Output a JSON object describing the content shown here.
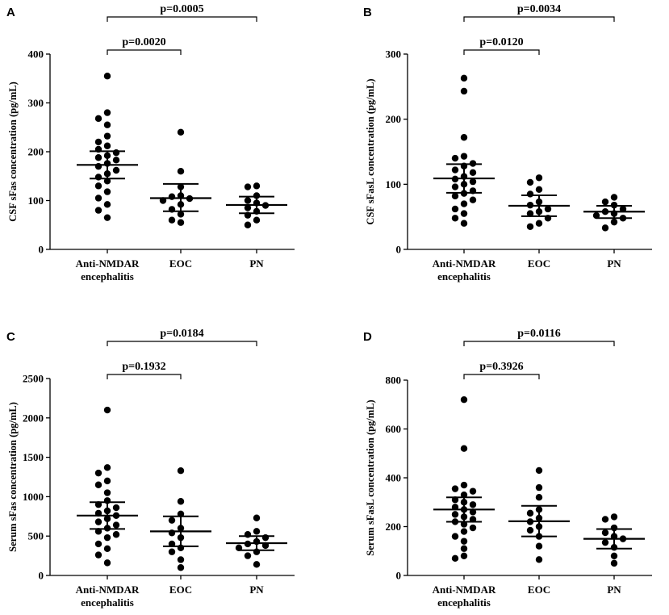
{
  "chart_data": [
    {
      "type": "scatter",
      "panel_label": "A",
      "ylabel": "CSF sFas concentration (pg/mL)",
      "categories": [
        "Anti-NMDAR encephalitis",
        "EOC",
        "PN"
      ],
      "category_lines": [
        [
          "Anti-NMDAR",
          "encephalitis"
        ],
        [
          "EOC"
        ],
        [
          "PN"
        ]
      ],
      "ylim": [
        0,
        400
      ],
      "yticks": [
        "0",
        "100",
        "200",
        "300",
        "400"
      ],
      "yticks_values": [
        0,
        100,
        200,
        300,
        400
      ],
      "brackets": [
        {
          "from": 0,
          "to": 2,
          "label": "p=0.0005"
        },
        {
          "from": 0,
          "to": 1,
          "label": "p=0.0020"
        }
      ],
      "groups": [
        {
          "name": "Anti-NMDAR encephalitis",
          "mean": 173,
          "ci_low": 145,
          "ci_high": 201,
          "values": [
            355,
            280,
            268,
            255,
            232,
            220,
            212,
            205,
            198,
            192,
            188,
            183,
            176,
            170,
            162,
            155,
            148,
            140,
            130,
            118,
            105,
            92,
            80,
            65
          ]
        },
        {
          "name": "EOC",
          "mean": 105,
          "ci_low": 78,
          "ci_high": 134,
          "values": [
            240,
            160,
            128,
            110,
            108,
            104,
            100,
            92,
            82,
            72,
            60,
            55
          ]
        },
        {
          "name": "PN",
          "mean": 91,
          "ci_low": 74,
          "ci_high": 108,
          "values": [
            130,
            128,
            110,
            100,
            95,
            90,
            85,
            78,
            70,
            60,
            50
          ]
        }
      ]
    },
    {
      "type": "scatter",
      "panel_label": "B",
      "ylabel": "CSF sFasL concentration (pg/mL)",
      "categories": [
        "Anti-NMDAR encephalitis",
        "EOC",
        "PN"
      ],
      "category_lines": [
        [
          "Anti-NMDAR",
          "encephalitis"
        ],
        [
          "EOC"
        ],
        [
          "PN"
        ]
      ],
      "ylim": [
        0,
        300
      ],
      "yticks": [
        "0",
        "100",
        "200",
        "300"
      ],
      "yticks_values": [
        0,
        100,
        200,
        300
      ],
      "brackets": [
        {
          "from": 0,
          "to": 2,
          "label": "p=0.0034"
        },
        {
          "from": 0,
          "to": 1,
          "label": "p=0.0120"
        }
      ],
      "groups": [
        {
          "name": "Anti-NMDAR encephalitis",
          "mean": 109,
          "ci_low": 87,
          "ci_high": 131,
          "values": [
            263,
            243,
            172,
            143,
            140,
            132,
            128,
            122,
            118,
            112,
            108,
            104,
            100,
            96,
            90,
            86,
            82,
            76,
            70,
            62,
            55,
            48,
            40
          ]
        },
        {
          "name": "EOC",
          "mean": 67,
          "ci_low": 51,
          "ci_high": 83,
          "values": [
            110,
            103,
            92,
            85,
            73,
            68,
            62,
            58,
            55,
            48,
            40,
            35
          ]
        },
        {
          "name": "PN",
          "mean": 58,
          "ci_low": 48,
          "ci_high": 67,
          "values": [
            80,
            73,
            68,
            62,
            58,
            55,
            52,
            48,
            42,
            33
          ]
        }
      ]
    },
    {
      "type": "scatter",
      "panel_label": "C",
      "ylabel": "Serum sFas concentration (pg/mL)",
      "categories": [
        "Anti-NMDAR encephalitis",
        "EOC",
        "PN"
      ],
      "category_lines": [
        [
          "Anti-NMDAR",
          "encephalitis"
        ],
        [
          "EOC"
        ],
        [
          "PN"
        ]
      ],
      "ylim": [
        0,
        2500
      ],
      "yticks": [
        "0",
        "500",
        "1000",
        "1500",
        "2000",
        "2500"
      ],
      "yticks_values": [
        0,
        500,
        1000,
        1500,
        2000,
        2500
      ],
      "brackets": [
        {
          "from": 0,
          "to": 2,
          "label": "p=0.0184"
        },
        {
          "from": 0,
          "to": 1,
          "label": "p=0.1932"
        }
      ],
      "groups": [
        {
          "name": "Anti-NMDAR encephalitis",
          "mean": 760,
          "ci_low": 590,
          "ci_high": 930,
          "values": [
            2100,
            1370,
            1300,
            1200,
            1150,
            1050,
            950,
            900,
            860,
            820,
            790,
            760,
            720,
            680,
            640,
            600,
            560,
            520,
            480,
            400,
            340,
            260,
            160
          ]
        },
        {
          "name": "EOC",
          "mean": 560,
          "ci_low": 370,
          "ci_high": 750,
          "values": [
            1330,
            940,
            780,
            700,
            600,
            540,
            480,
            400,
            350,
            300,
            200,
            100
          ]
        },
        {
          "name": "PN",
          "mean": 410,
          "ci_low": 320,
          "ci_high": 500,
          "values": [
            730,
            560,
            520,
            480,
            430,
            400,
            380,
            350,
            300,
            250,
            140
          ]
        }
      ]
    },
    {
      "type": "scatter",
      "panel_label": "D",
      "ylabel": "Serum sFasL concentration (pg/mL)",
      "categories": [
        "Anti-NMDAR encephalitis",
        "EOC",
        "PN"
      ],
      "category_lines": [
        [
          "Anti-NMDAR",
          "encephalitis"
        ],
        [
          "EOC"
        ],
        [
          "PN"
        ]
      ],
      "ylim": [
        0,
        800
      ],
      "yticks": [
        "0",
        "200",
        "400",
        "600",
        "800"
      ],
      "yticks_values": [
        0,
        200,
        400,
        600,
        800
      ],
      "brackets": [
        {
          "from": 0,
          "to": 2,
          "label": "p=0.0116"
        },
        {
          "from": 0,
          "to": 1,
          "label": "p=0.3926"
        }
      ],
      "groups": [
        {
          "name": "Anti-NMDAR encephalitis",
          "mean": 270,
          "ci_low": 220,
          "ci_high": 320,
          "values": [
            720,
            520,
            370,
            355,
            345,
            330,
            310,
            300,
            290,
            280,
            270,
            260,
            250,
            240,
            230,
            220,
            210,
            195,
            180,
            160,
            140,
            110,
            80,
            70
          ]
        },
        {
          "name": "EOC",
          "mean": 222,
          "ci_low": 160,
          "ci_high": 285,
          "values": [
            430,
            360,
            320,
            270,
            255,
            235,
            220,
            200,
            185,
            160,
            120,
            65
          ]
        },
        {
          "name": "PN",
          "mean": 150,
          "ci_low": 110,
          "ci_high": 190,
          "values": [
            240,
            230,
            195,
            175,
            160,
            150,
            135,
            115,
            80,
            50
          ]
        }
      ]
    }
  ]
}
